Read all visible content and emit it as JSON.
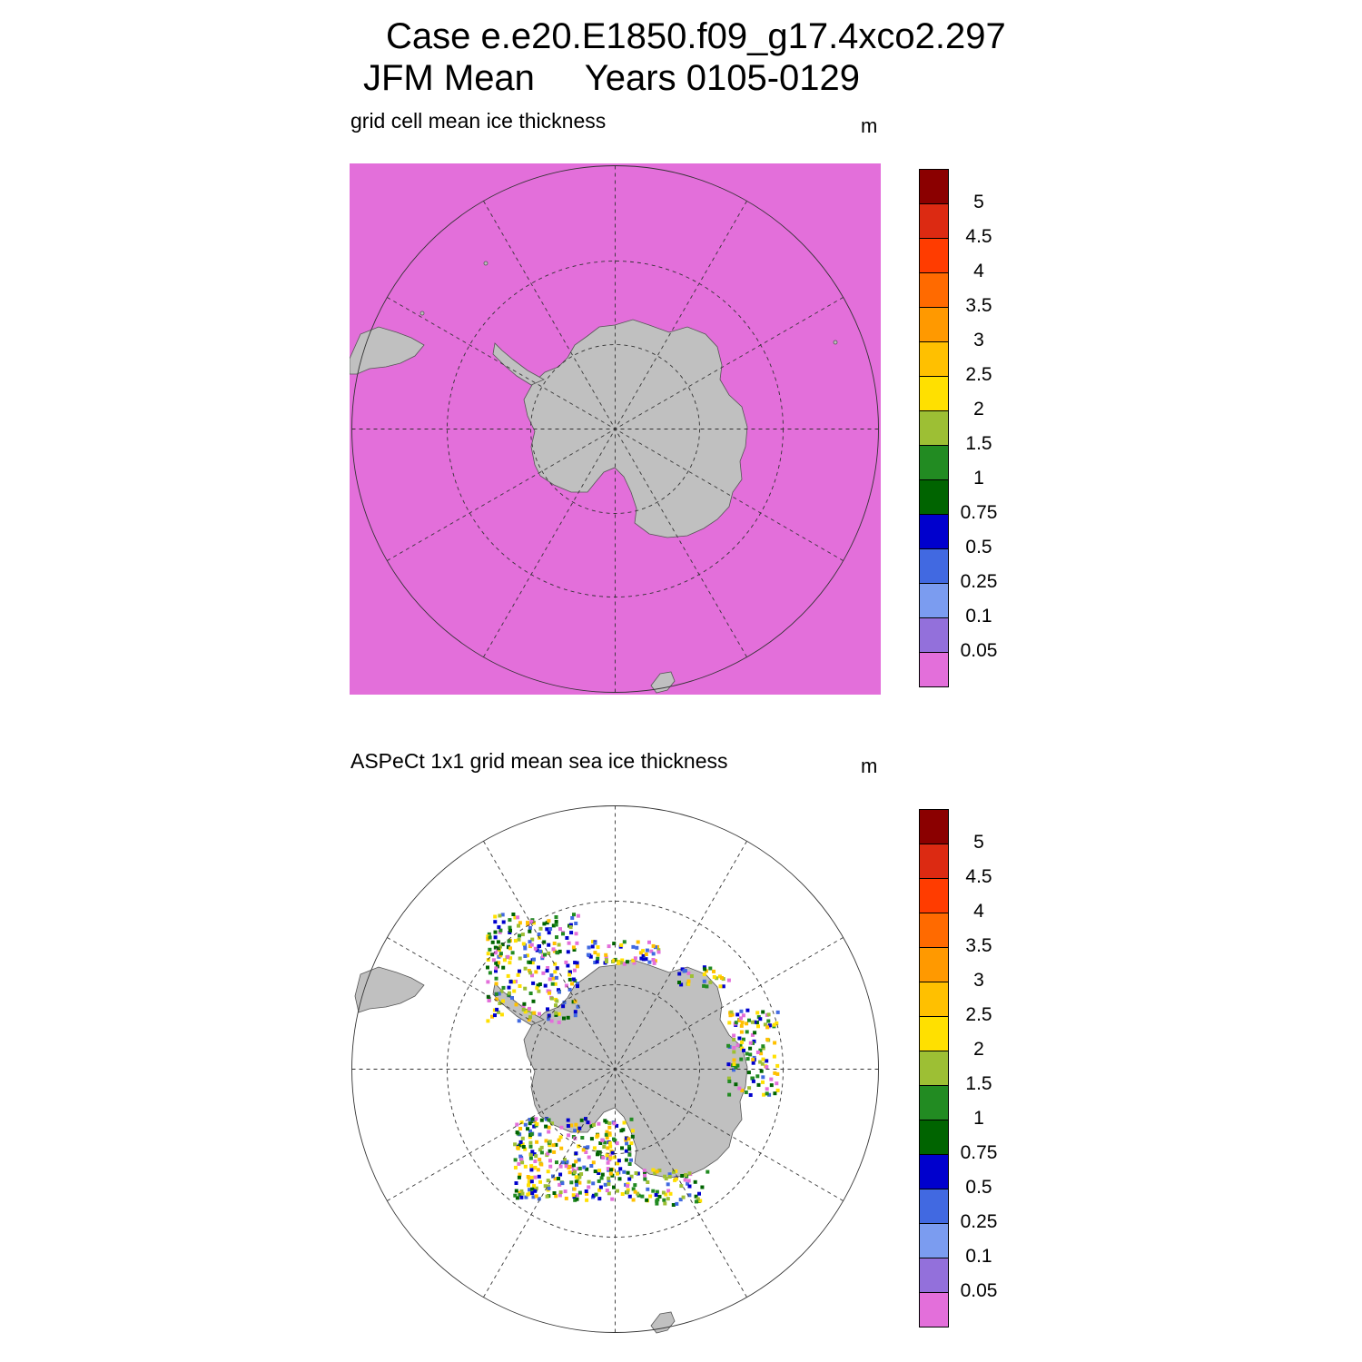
{
  "title": {
    "line1": "Case e.e20.E1850.f09_g17.4xco2.297",
    "line2": "JFM Mean     Years 0105-0129"
  },
  "panels": [
    {
      "id": "model",
      "label": "grid cell mean ice thickness",
      "units": "m",
      "field": "all values below 0.05 m over the ocean"
    },
    {
      "id": "obs",
      "label": "ASPeCt 1x1 grid mean sea ice thickness",
      "units": "m",
      "field": "sparse ship-based observations around the Antarctic coast"
    }
  ],
  "colorbar": {
    "labels": [
      "5",
      "4.5",
      "4",
      "3.5",
      "3",
      "2.5",
      "2",
      "1.5",
      "1",
      "0.75",
      "0.5",
      "0.25",
      "0.1",
      "0.05"
    ],
    "colors": [
      "#8b0000",
      "#dc2a12",
      "#ff3c00",
      "#ff6a00",
      "#ff9900",
      "#ffc000",
      "#ffe000",
      "#9dbf34",
      "#228b22",
      "#006400",
      "#0000cd",
      "#4169e1",
      "#7b9cf0",
      "#9370db",
      "#e36fda"
    ]
  },
  "colors": {
    "ocean_low": "#e36fda",
    "land": "#c0c0c0"
  }
}
